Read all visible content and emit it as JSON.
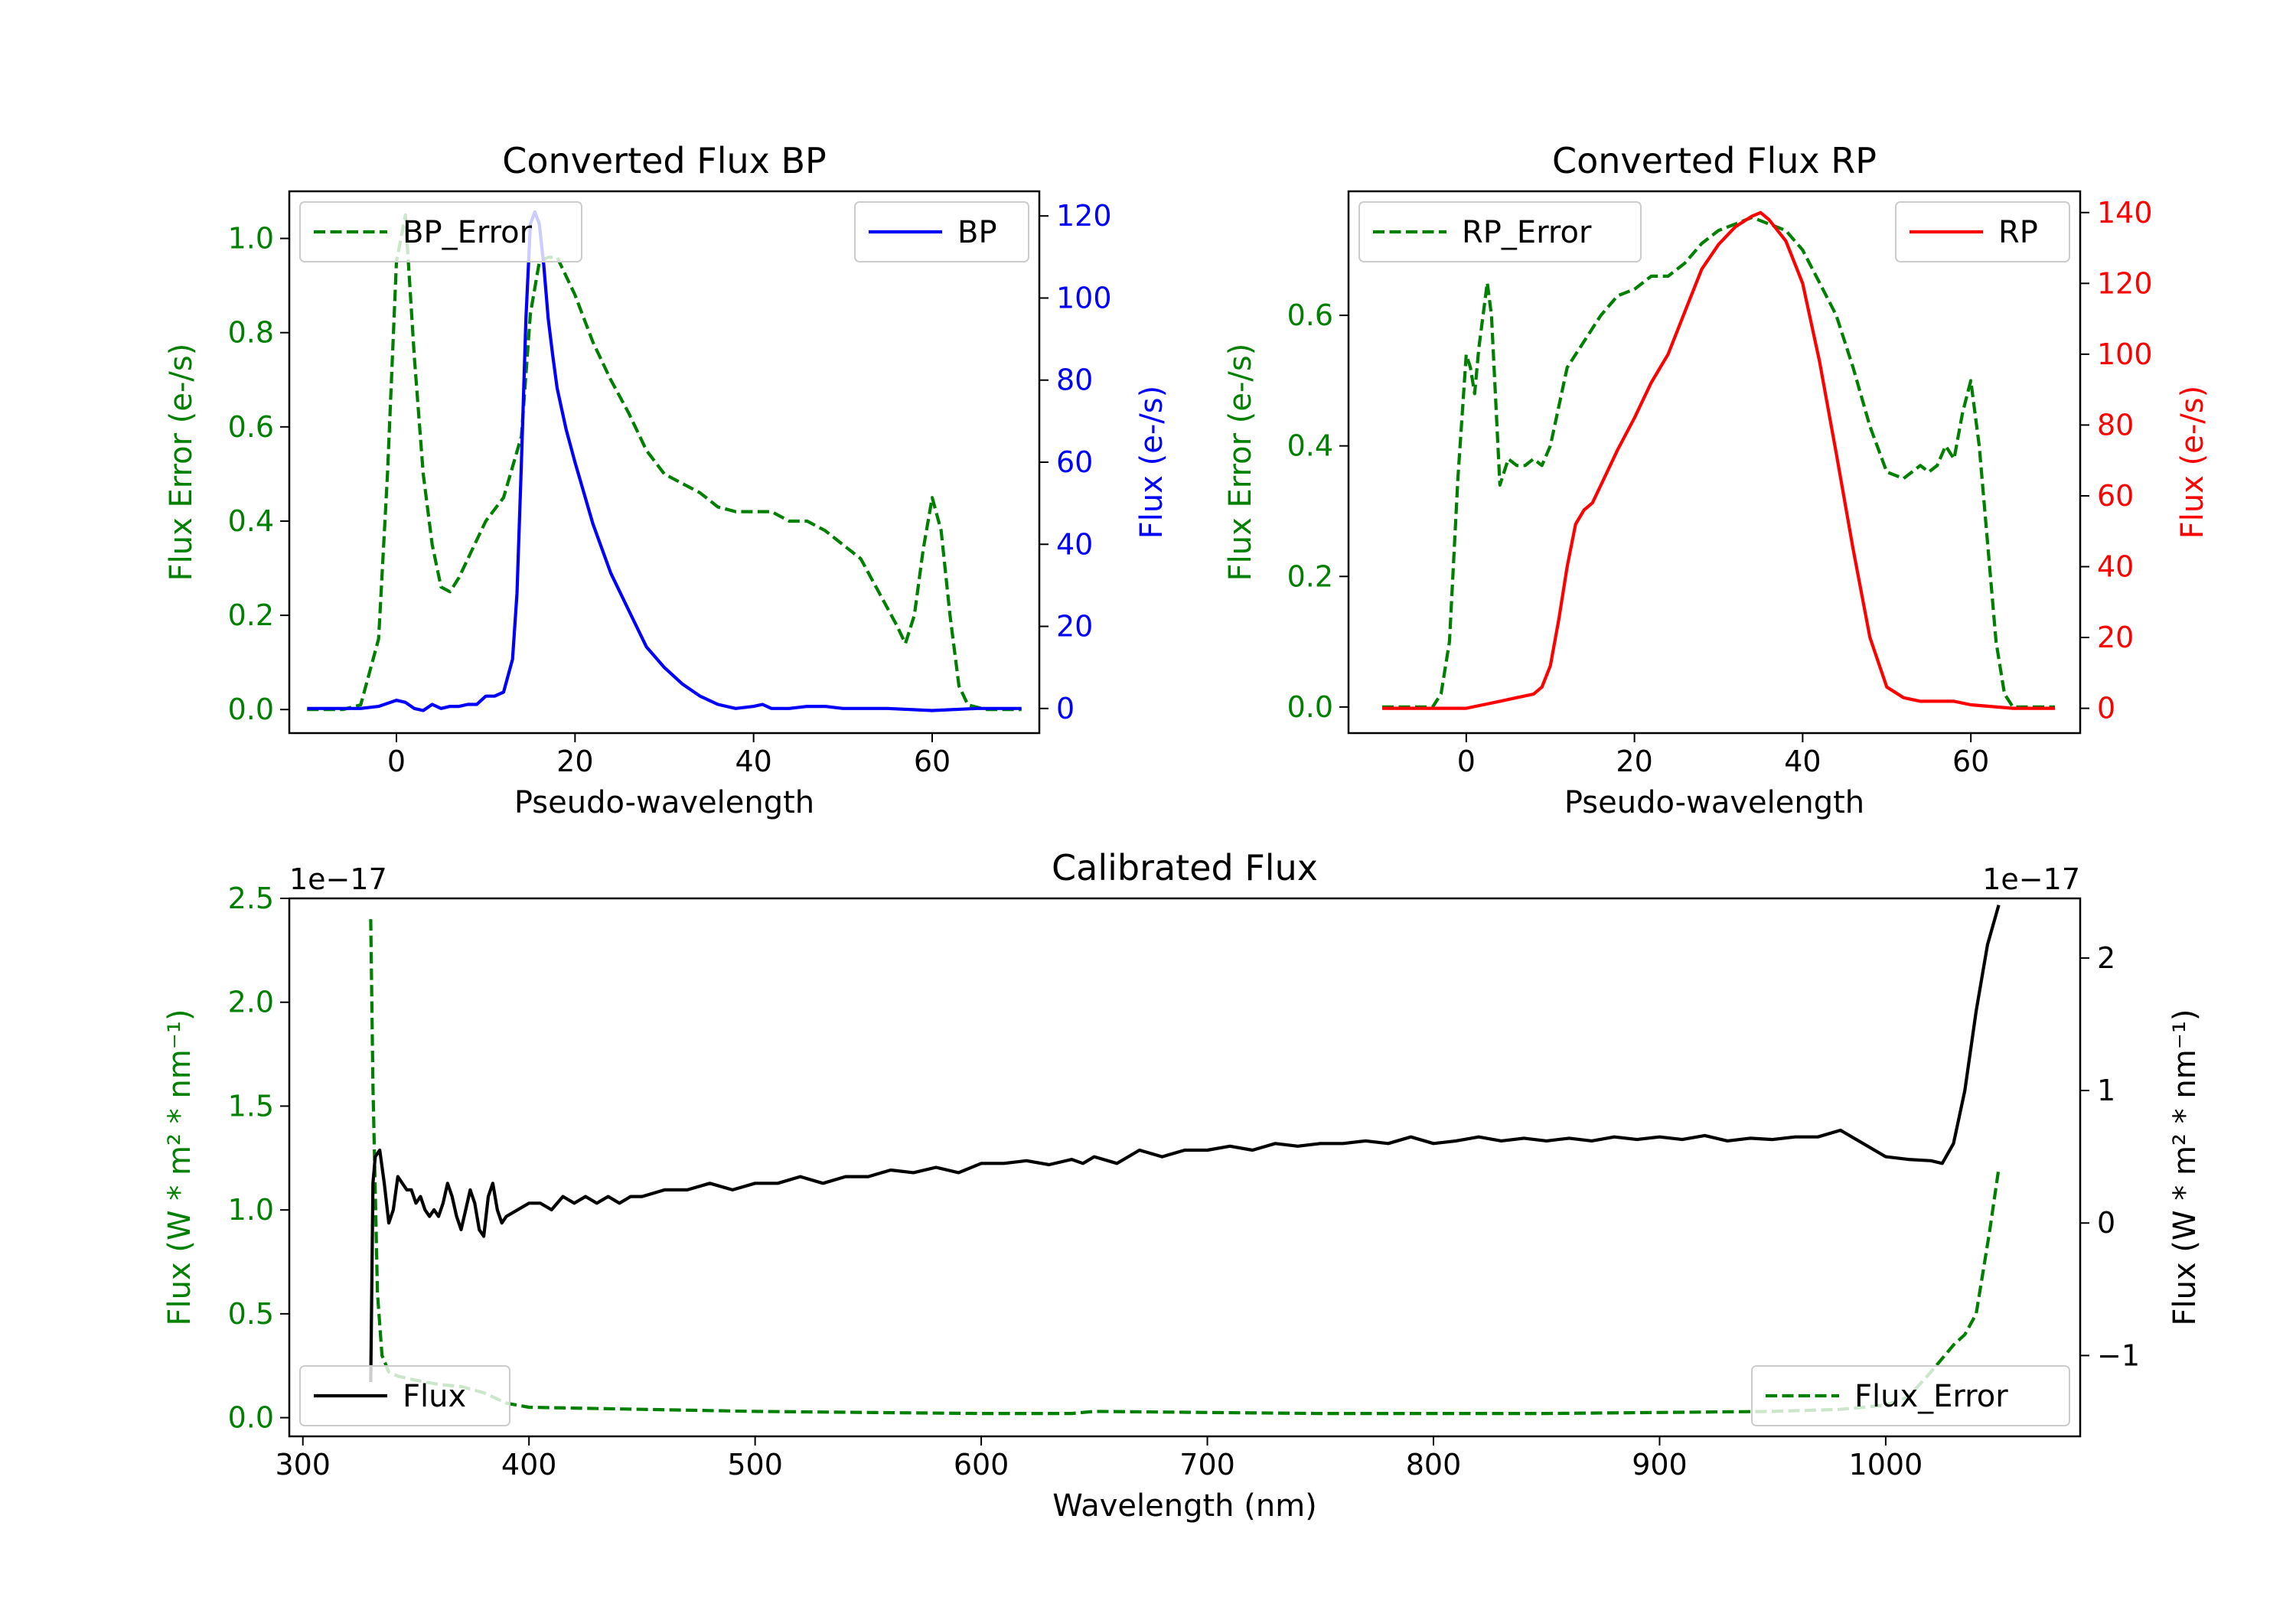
{
  "colors": {
    "error": "#008000",
    "bp": "#0000ff",
    "rp": "#ff0000",
    "flux": "#000000"
  },
  "chart_data": [
    {
      "id": "bp",
      "type": "line",
      "title": "Converted Flux BP",
      "xlabel": "Pseudo-wavelength",
      "ylabel_left": "Flux Error (e-/s)",
      "ylabel_right": "Flux (e-/s)",
      "xlim": [
        -12,
        72
      ],
      "ylim_left": [
        -0.05,
        1.1
      ],
      "ylim_right": [
        -6,
        126
      ],
      "xticks": [
        "0",
        "20",
        "40",
        "60"
      ],
      "yticks_left": [
        "0.0",
        "0.2",
        "0.4",
        "0.6",
        "0.8",
        "1.0"
      ],
      "yticks_right": [
        "0",
        "20",
        "40",
        "60",
        "80",
        "100",
        "120"
      ],
      "legend_left": "BP_Error",
      "legend_right": "BP",
      "series": [
        {
          "name": "BP_Error",
          "axis": "left",
          "style": "dashed",
          "color": "#008000",
          "x": [
            -10,
            -6,
            -4,
            -2,
            -1,
            0,
            1,
            2,
            3,
            4,
            5,
            6,
            7,
            8,
            10,
            12,
            14,
            15,
            16,
            17,
            18,
            20,
            22,
            24,
            26,
            28,
            30,
            32,
            34,
            36,
            38,
            40,
            42,
            44,
            46,
            48,
            50,
            52,
            54,
            56,
            57,
            58,
            59,
            60,
            61,
            62,
            63,
            64,
            66,
            70
          ],
          "y": [
            0,
            0,
            0.01,
            0.15,
            0.5,
            0.95,
            1.05,
            0.75,
            0.5,
            0.35,
            0.26,
            0.25,
            0.28,
            0.32,
            0.4,
            0.45,
            0.58,
            0.84,
            0.95,
            0.96,
            0.96,
            0.88,
            0.78,
            0.7,
            0.63,
            0.55,
            0.5,
            0.48,
            0.46,
            0.43,
            0.42,
            0.42,
            0.42,
            0.4,
            0.4,
            0.38,
            0.35,
            0.32,
            0.25,
            0.18,
            0.14,
            0.2,
            0.34,
            0.45,
            0.38,
            0.2,
            0.05,
            0.01,
            0,
            0
          ]
        },
        {
          "name": "BP",
          "axis": "right",
          "style": "solid",
          "color": "#0000ff",
          "x": [
            -10,
            -4,
            -2,
            0,
            1,
            2,
            3,
            4,
            5,
            6,
            7,
            8,
            9,
            10,
            11,
            12,
            13,
            13.5,
            14,
            14.5,
            15,
            15.5,
            16,
            16.5,
            17,
            17.5,
            18,
            19,
            20,
            22,
            24,
            26,
            28,
            30,
            32,
            34,
            36,
            38,
            40,
            41,
            42,
            44,
            46,
            48,
            50,
            55,
            60,
            65,
            70
          ],
          "y": [
            0,
            0,
            0.5,
            2,
            1.5,
            0,
            -0.5,
            1,
            0,
            0.5,
            0.5,
            1,
            1,
            3,
            3,
            4,
            12,
            28,
            60,
            95,
            118,
            121,
            118,
            108,
            95,
            86,
            78,
            68,
            60,
            45,
            33,
            24,
            15,
            10,
            6,
            3,
            1,
            0,
            0.5,
            1,
            0,
            0,
            0.5,
            0.5,
            0,
            0,
            -0.5,
            0,
            0
          ]
        }
      ]
    },
    {
      "id": "rp",
      "type": "line",
      "title": "Converted Flux RP",
      "xlabel": "Pseudo-wavelength",
      "ylabel_left": "Flux Error (e-/s)",
      "ylabel_right": "Flux (e-/s)",
      "xlim": [
        -14,
        73
      ],
      "ylim_left": [
        -0.04,
        0.79
      ],
      "ylim_right": [
        -7,
        146
      ],
      "xticks": [
        "0",
        "20",
        "40",
        "60"
      ],
      "yticks_left": [
        "0.0",
        "0.2",
        "0.4",
        "0.6"
      ],
      "yticks_right": [
        "0",
        "20",
        "40",
        "60",
        "80",
        "100",
        "120",
        "140"
      ],
      "legend_left": "RP_Error",
      "legend_right": "RP",
      "series": [
        {
          "name": "RP_Error",
          "axis": "left",
          "style": "dashed",
          "color": "#008000",
          "x": [
            -10,
            -4,
            -3,
            -2,
            -1,
            0,
            0.5,
            1,
            1.5,
            2,
            2.5,
            3,
            4,
            5,
            6,
            7,
            8,
            9,
            10,
            12,
            14,
            16,
            18,
            20,
            22,
            24,
            26,
            28,
            30,
            32,
            34,
            36,
            38,
            40,
            42,
            44,
            46,
            48,
            50,
            52,
            54,
            55,
            56,
            57,
            58,
            59,
            60,
            61,
            62,
            63,
            64,
            65,
            66,
            70
          ],
          "y": [
            0,
            0,
            0.02,
            0.1,
            0.35,
            0.54,
            0.52,
            0.48,
            0.55,
            0.6,
            0.65,
            0.6,
            0.34,
            0.38,
            0.37,
            0.37,
            0.38,
            0.37,
            0.4,
            0.52,
            0.56,
            0.6,
            0.63,
            0.64,
            0.66,
            0.66,
            0.68,
            0.71,
            0.73,
            0.74,
            0.75,
            0.74,
            0.73,
            0.7,
            0.65,
            0.6,
            0.52,
            0.43,
            0.36,
            0.35,
            0.37,
            0.36,
            0.37,
            0.4,
            0.38,
            0.45,
            0.5,
            0.4,
            0.25,
            0.1,
            0.02,
            0,
            0,
            0
          ]
        },
        {
          "name": "RP",
          "axis": "right",
          "style": "solid",
          "color": "#ff0000",
          "x": [
            -10,
            0,
            2,
            4,
            6,
            8,
            9,
            10,
            11,
            12,
            13,
            14,
            15,
            16,
            18,
            20,
            22,
            24,
            26,
            28,
            30,
            32,
            34,
            35,
            36,
            38,
            40,
            42,
            44,
            46,
            48,
            50,
            52,
            54,
            56,
            58,
            60,
            65,
            70
          ],
          "y": [
            0,
            0,
            1,
            2,
            3,
            4,
            6,
            12,
            25,
            40,
            52,
            56,
            58,
            63,
            73,
            82,
            92,
            100,
            112,
            124,
            131,
            136,
            139,
            140,
            138,
            132,
            120,
            98,
            72,
            45,
            20,
            6,
            3,
            2,
            2,
            2,
            1,
            0,
            0
          ]
        }
      ]
    },
    {
      "id": "calibrated",
      "type": "line",
      "title": "Calibrated Flux",
      "xlabel": "Wavelength (nm)",
      "ylabel_left": "Flux (W * m² * nm⁻¹)",
      "ylabel_right": "Flux (W * m² * nm⁻¹)",
      "offset_left": "1e−17",
      "offset_right": "1e−17",
      "xlim": [
        294,
        1086
      ],
      "ylim_left": [
        -0.09,
        2.5
      ],
      "ylim_right": [
        -1.61,
        2.45
      ],
      "xticks": [
        "300",
        "400",
        "500",
        "600",
        "700",
        "800",
        "900",
        "1000"
      ],
      "yticks_left": [
        "0.0",
        "0.5",
        "1.0",
        "1.5",
        "2.0",
        "2.5"
      ],
      "yticks_right": [
        "−1",
        "0",
        "1",
        "2"
      ],
      "legend_left": "Flux",
      "legend_right": "Flux_Error",
      "series": [
        {
          "name": "Flux_Error",
          "axis": "left",
          "style": "dashed",
          "color": "#008000",
          "x": [
            330,
            331,
            333,
            335,
            338,
            342,
            350,
            360,
            370,
            380,
            390,
            400,
            450,
            500,
            550,
            600,
            640,
            650,
            700,
            750,
            800,
            850,
            900,
            950,
            980,
            1000,
            1010,
            1020,
            1030,
            1035,
            1040,
            1043,
            1046,
            1048,
            1050
          ],
          "y": [
            2.4,
            1.6,
            0.6,
            0.3,
            0.22,
            0.2,
            0.18,
            0.16,
            0.15,
            0.12,
            0.07,
            0.05,
            0.04,
            0.03,
            0.025,
            0.02,
            0.02,
            0.03,
            0.025,
            0.02,
            0.02,
            0.02,
            0.025,
            0.03,
            0.04,
            0.06,
            0.1,
            0.22,
            0.35,
            0.4,
            0.5,
            0.7,
            0.9,
            1.05,
            1.2
          ]
        },
        {
          "name": "Flux",
          "axis": "right",
          "style": "solid",
          "color": "#000000",
          "x": [
            330,
            331,
            332,
            334,
            336,
            338,
            340,
            342,
            344,
            346,
            348,
            350,
            352,
            354,
            356,
            358,
            360,
            362,
            364,
            366,
            368,
            370,
            372,
            374,
            376,
            378,
            380,
            382,
            384,
            386,
            388,
            390,
            395,
            400,
            405,
            410,
            415,
            420,
            425,
            430,
            435,
            440,
            445,
            450,
            460,
            470,
            480,
            490,
            500,
            510,
            520,
            530,
            540,
            550,
            560,
            570,
            580,
            590,
            600,
            610,
            620,
            630,
            640,
            645,
            650,
            660,
            670,
            680,
            690,
            700,
            710,
            720,
            730,
            740,
            750,
            760,
            770,
            780,
            790,
            800,
            810,
            820,
            830,
            840,
            850,
            860,
            870,
            880,
            890,
            900,
            910,
            920,
            930,
            940,
            950,
            960,
            970,
            980,
            990,
            1000,
            1010,
            1020,
            1025,
            1030,
            1035,
            1040,
            1045,
            1050
          ],
          "y": [
            -1.2,
            0.3,
            0.5,
            0.55,
            0.3,
            0,
            0.1,
            0.35,
            0.3,
            0.25,
            0.25,
            0.15,
            0.2,
            0.1,
            0.05,
            0.1,
            0.05,
            0.15,
            0.3,
            0.2,
            0.05,
            -0.05,
            0.1,
            0.25,
            0.15,
            -0.05,
            -0.1,
            0.2,
            0.3,
            0.1,
            0.0,
            0.05,
            0.1,
            0.15,
            0.15,
            0.1,
            0.2,
            0.15,
            0.2,
            0.15,
            0.2,
            0.15,
            0.2,
            0.2,
            0.25,
            0.25,
            0.3,
            0.25,
            0.3,
            0.3,
            0.35,
            0.3,
            0.35,
            0.35,
            0.4,
            0.38,
            0.42,
            0.38,
            0.45,
            0.45,
            0.47,
            0.44,
            0.48,
            0.45,
            0.5,
            0.45,
            0.55,
            0.5,
            0.55,
            0.55,
            0.58,
            0.55,
            0.6,
            0.58,
            0.6,
            0.6,
            0.62,
            0.6,
            0.65,
            0.6,
            0.62,
            0.65,
            0.62,
            0.64,
            0.62,
            0.64,
            0.62,
            0.65,
            0.63,
            0.65,
            0.63,
            0.66,
            0.62,
            0.64,
            0.63,
            0.65,
            0.65,
            0.7,
            0.6,
            0.5,
            0.48,
            0.47,
            0.45,
            0.6,
            1.0,
            1.6,
            2.1,
            2.4
          ]
        }
      ]
    }
  ]
}
